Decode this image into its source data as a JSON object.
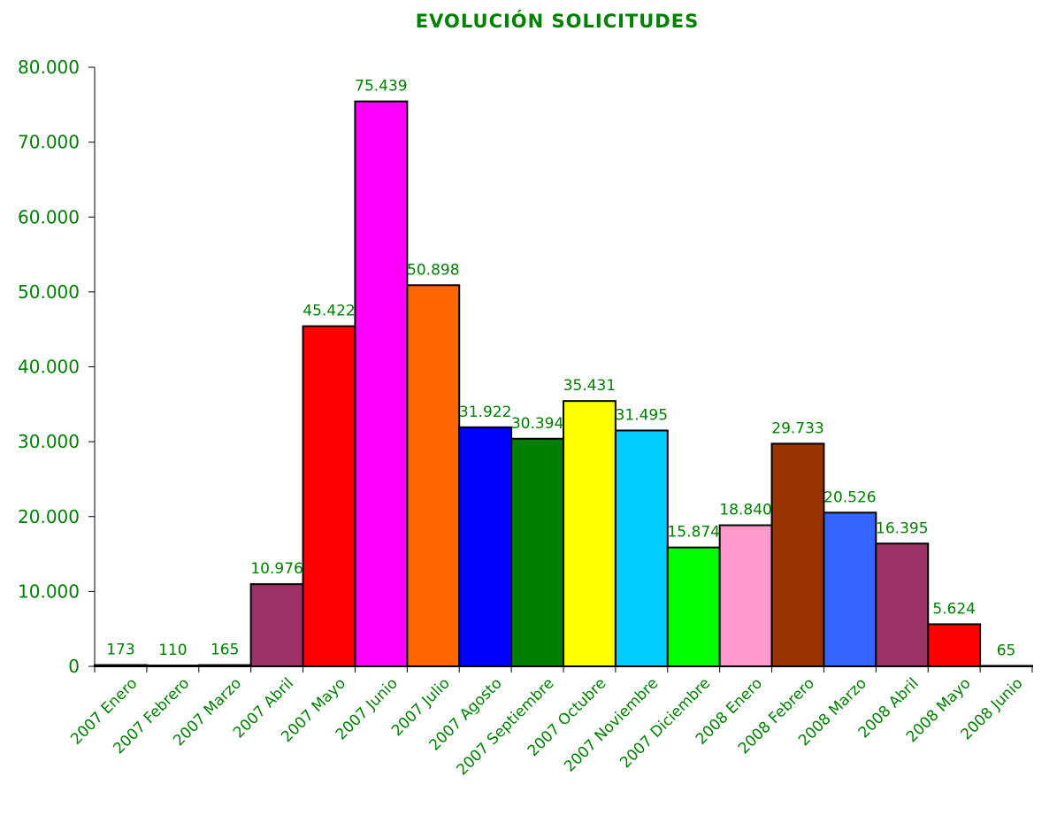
{
  "chart_data": {
    "type": "bar",
    "title": "EVOLUCIÓN SOLICITUDES",
    "categories": [
      "2007 Enero",
      "2007 Febrero",
      "2007 Marzo",
      "2007 Abril",
      "2007 Mayo",
      "2007 Junio",
      "2007 Julio",
      "2007 Agosto",
      "2007 Septiembre",
      "2007 Octubre",
      "2007 Noviembre",
      "2007 Diciembre",
      "2008 Enero",
      "2008 Febrero",
      "2008 Marzo",
      "2008 Abril",
      "2008 Mayo",
      "2008 Junio"
    ],
    "values": [
      173,
      110,
      165,
      10976,
      45422,
      75439,
      50898,
      31922,
      30394,
      35431,
      31495,
      15874,
      18840,
      29733,
      20526,
      16395,
      5624,
      65
    ],
    "value_labels": [
      "173",
      "110",
      "165",
      "10.976",
      "45.422",
      "75.439",
      "50.898",
      "31.922",
      "30.394",
      "35.431",
      "31.495",
      "15.874",
      "18.840",
      "29.733",
      "20.526",
      "16.395",
      "5.624",
      "65"
    ],
    "bar_colors": [
      "#993366",
      "#993366",
      "#993366",
      "#993366",
      "#ff0000",
      "#ff00ff",
      "#ff6600",
      "#0000ff",
      "#008000",
      "#ffff00",
      "#00ccff",
      "#00ff00",
      "#ff99cc",
      "#993300",
      "#3366ff",
      "#993366",
      "#ff0000",
      "#993366"
    ],
    "ylim": [
      0,
      80000
    ],
    "y_ticks": [
      0,
      10000,
      20000,
      30000,
      40000,
      50000,
      60000,
      70000,
      80000
    ],
    "y_tick_labels": [
      "0",
      "10.000",
      "20.000",
      "30.000",
      "40.000",
      "50.000",
      "60.000",
      "70.000",
      "80.000"
    ],
    "xlabel": "",
    "ylabel": "",
    "grid": false,
    "legend": "none",
    "text_color": "#008000"
  }
}
